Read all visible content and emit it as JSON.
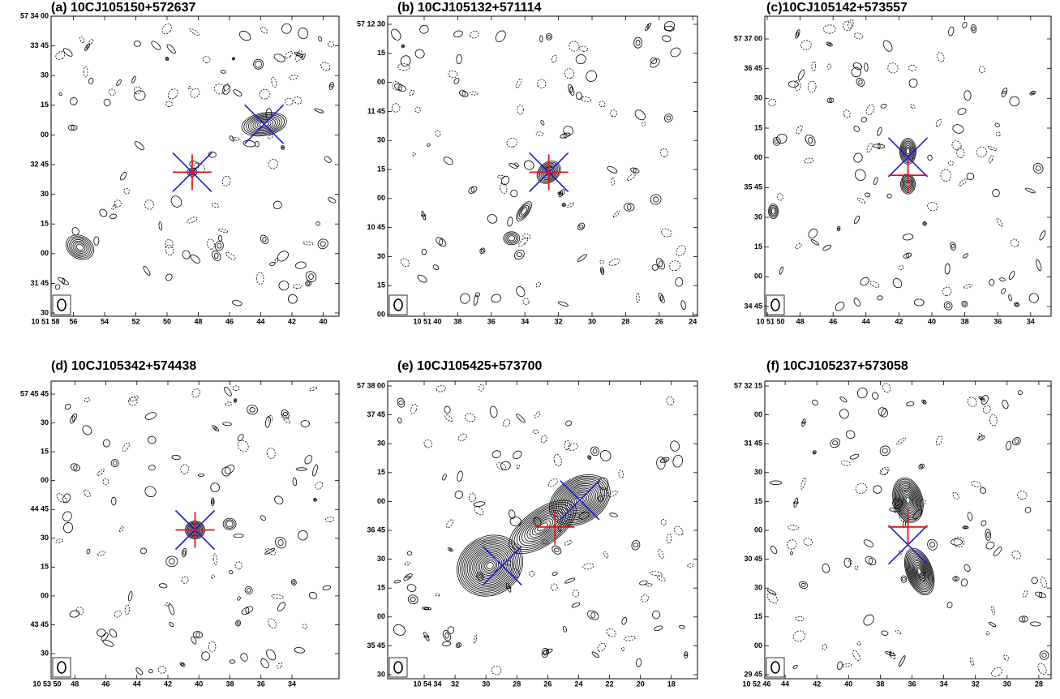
{
  "panels": [
    {
      "title": "(a) 10CJ105150+572637",
      "y_tick_labels": [
        "57 34 00",
        "33 45",
        "30",
        "15",
        "00",
        "32 45",
        "30",
        "15",
        "00",
        "31 45",
        "30"
      ],
      "x_tick_labels": [
        "10 51 58",
        "56",
        "54",
        "52",
        "50",
        "48",
        "46",
        "44",
        "42",
        "40"
      ]
    },
    {
      "title": "(b) 10CJ105132+571114",
      "y_tick_labels": [
        "57 12 30",
        "15",
        "00",
        "11 45",
        "30",
        "15",
        "00",
        "10 45",
        "30",
        "15",
        "00"
      ],
      "x_tick_labels": [
        "10 51 40",
        "38",
        "36",
        "34",
        "32",
        "30",
        "28",
        "26",
        "24"
      ]
    },
    {
      "title": "(c)10CJ105142+573557",
      "y_tick_labels": [
        "57 37 00",
        "36 45",
        "30",
        "15",
        "00",
        "35 45",
        "30",
        "15",
        "00",
        "34 45"
      ],
      "x_tick_labels": [
        "10 51 50",
        "48",
        "46",
        "44",
        "42",
        "40",
        "38",
        "36",
        "34"
      ]
    },
    {
      "title": "(d) 10CJ105342+574438",
      "y_tick_labels": [
        "57 45 45",
        "30",
        "15",
        "00",
        "44 45",
        "30",
        "15",
        "00",
        "43 45",
        "30"
      ],
      "x_tick_labels": [
        "10 53 50",
        "48",
        "46",
        "44",
        "42",
        "40",
        "38",
        "36",
        "34"
      ]
    },
    {
      "title": "(e) 10CJ105425+573700",
      "y_tick_labels": [
        "57 38 00",
        "37 45",
        "30",
        "15",
        "00",
        "36 45",
        "30",
        "15",
        "00",
        "35 45",
        "30"
      ],
      "x_tick_labels": [
        "10 54 34",
        "32",
        "30",
        "28",
        "26",
        "24",
        "22",
        "20",
        "18"
      ]
    },
    {
      "title": "(f) 10CJ105237+573058",
      "y_tick_labels": [
        "57 32 15",
        "00",
        "31 45",
        "30",
        "15",
        "00",
        "30 45",
        "30",
        "15",
        "00",
        "29 45"
      ],
      "x_tick_labels": [
        "10 52 46",
        "44",
        "42",
        "40",
        "38",
        "36",
        "34",
        "32",
        "30",
        "28"
      ]
    }
  ]
}
